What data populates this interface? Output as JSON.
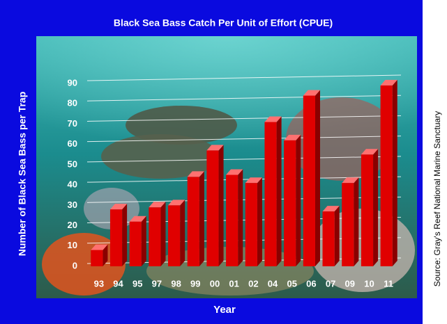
{
  "chart_data": {
    "type": "bar3d",
    "title": "Black Sea Bass Catch Per Unit of Effort (CPUE)",
    "x_label": "Year",
    "y_label": "Number of Black Sea Bass per Trap",
    "source": "Source: Gray's Reef National Marine Sanctuary",
    "categories": [
      "93",
      "94",
      "95",
      "97",
      "98",
      "99",
      "00",
      "01",
      "02",
      "04",
      "05",
      "06",
      "07",
      "09",
      "10",
      "11"
    ],
    "values": [
      8,
      28,
      22,
      29,
      30,
      44,
      57,
      45,
      41,
      71,
      62,
      84,
      27,
      41,
      55,
      89
    ],
    "color": "#e00000",
    "ylim": [
      0,
      90
    ],
    "yticks": [
      0,
      10,
      20,
      30,
      40,
      50,
      60,
      70,
      80,
      90
    ],
    "grid": true
  }
}
